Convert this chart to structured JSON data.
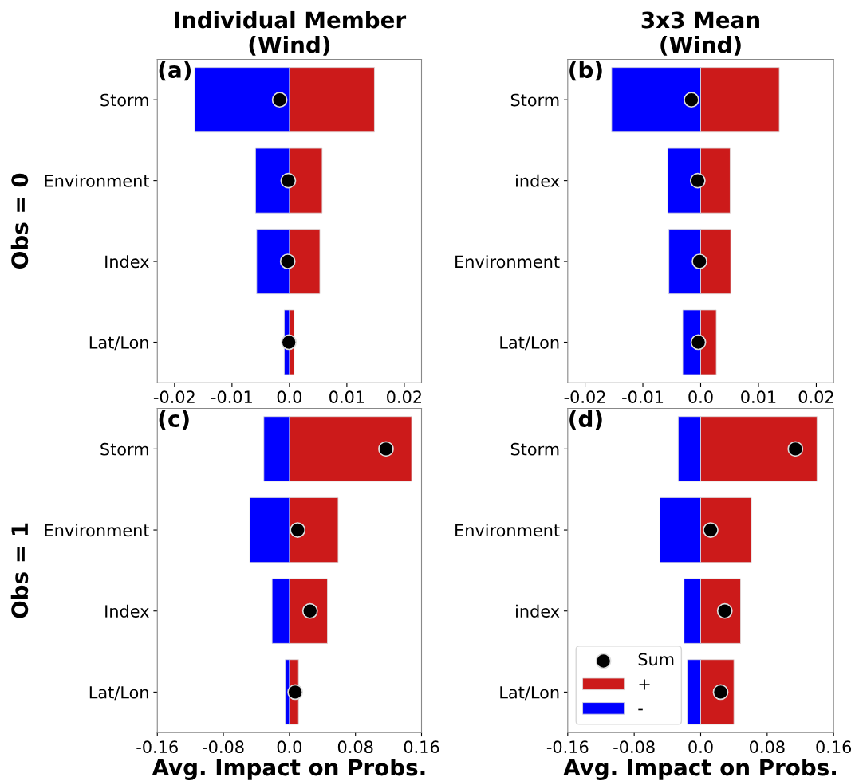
{
  "chart_data": [
    {
      "type": "bar",
      "orientation": "horizontal",
      "stacked": true,
      "title": "Individual Member\n(Wind)",
      "ylabel": "Obs = 0",
      "annotations": [
        "(a)"
      ],
      "categories": [
        "Storm",
        "Environment",
        "Index",
        "Lat/Lon"
      ],
      "xlim": [
        -0.023,
        0.023
      ],
      "xticks": [
        {
          "value": -0.02,
          "label": "-0.02"
        },
        {
          "value": -0.01,
          "label": "-0.01"
        },
        {
          "value": 0,
          "label": "0.0"
        },
        0.01,
        0.02
      ],
      "grid": false,
      "legend": false,
      "series": [
        {
          "type": "scatter",
          "color": "#000000",
          "marker": "circle",
          "values": [
            -0.0017,
            -0.0002,
            -0.0003,
            -0.0001
          ]
        },
        {
          "color": "#cc1a1a",
          "values": [
            0.0148,
            0.0057,
            0.0053,
            0.0008
          ]
        },
        {
          "color": "#0000ff",
          "values": [
            -0.0165,
            -0.0059,
            -0.0057,
            -0.0009
          ]
        }
      ]
    },
    {
      "type": "bar",
      "orientation": "horizontal",
      "stacked": true,
      "title": "3x3 Mean\n(Wind)",
      "annotations": [
        "(b)"
      ],
      "categories": [
        "Storm",
        "index",
        "Environment",
        "Lat/Lon"
      ],
      "xlim": [
        -0.023,
        0.023
      ],
      "xticks": [
        {
          "value": -0.02,
          "label": "-0.02"
        },
        {
          "value": -0.01,
          "label": "-0.01"
        },
        {
          "value": 0,
          "label": "0.0"
        },
        0.01,
        0.02
      ],
      "grid": false,
      "legend": false,
      "series": [
        {
          "type": "scatter",
          "color": "#000000",
          "marker": "circle",
          "values": [
            -0.0016,
            -0.0005,
            -0.0002,
            -0.0004
          ]
        },
        {
          "color": "#cc1a1a",
          "values": [
            0.0136,
            0.0051,
            0.0052,
            0.0027
          ]
        },
        {
          "color": "#0000ff",
          "values": [
            -0.0154,
            -0.0057,
            -0.0055,
            -0.0031
          ]
        }
      ]
    },
    {
      "type": "bar",
      "orientation": "horizontal",
      "stacked": true,
      "ylabel": "Obs = 1",
      "xlabel": "Avg. Impact on Probs.",
      "annotations": [
        "(c)"
      ],
      "categories": [
        "Storm",
        "Environment",
        "Index",
        "Lat/Lon"
      ],
      "xlim": [
        -0.16,
        0.16
      ],
      "xticks": [
        {
          "value": -0.16,
          "label": "-0.16"
        },
        {
          "value": -0.08,
          "label": "-0.08"
        },
        {
          "value": 0,
          "label": "0.0"
        },
        0.08,
        0.16
      ],
      "grid": false,
      "legend": false,
      "series": [
        {
          "type": "scatter",
          "color": "#000000",
          "marker": "circle",
          "values": [
            0.117,
            0.01,
            0.025,
            0.007
          ]
        },
        {
          "color": "#cc1a1a",
          "values": [
            0.148,
            0.059,
            0.046,
            0.011
          ]
        },
        {
          "color": "#0000ff",
          "values": [
            -0.031,
            -0.048,
            -0.021,
            -0.005
          ]
        }
      ]
    },
    {
      "type": "bar",
      "orientation": "horizontal",
      "stacked": true,
      "xlabel": "Avg. Impact on Probs.",
      "annotations": [
        "(d)"
      ],
      "categories": [
        "Storm",
        "Environment",
        "index",
        "Lat/Lon"
      ],
      "xlim": [
        -0.16,
        0.16
      ],
      "xticks": [
        {
          "value": -0.16,
          "label": "-0.16"
        },
        {
          "value": -0.08,
          "label": "-0.08"
        },
        {
          "value": 0,
          "label": "0.0"
        },
        0.08,
        0.16
      ],
      "grid": false,
      "legend": "lower left",
      "series": [
        {
          "type": "scatter",
          "name": "Sum",
          "color": "#000000",
          "marker": "circle",
          "values": [
            0.114,
            0.012,
            0.029,
            0.024
          ]
        },
        {
          "name": "+",
          "color": "#cc1a1a",
          "values": [
            0.14,
            0.061,
            0.048,
            0.04
          ]
        },
        {
          "name": "-",
          "color": "#0000ff",
          "values": [
            -0.027,
            -0.049,
            -0.02,
            -0.016
          ]
        }
      ]
    }
  ]
}
